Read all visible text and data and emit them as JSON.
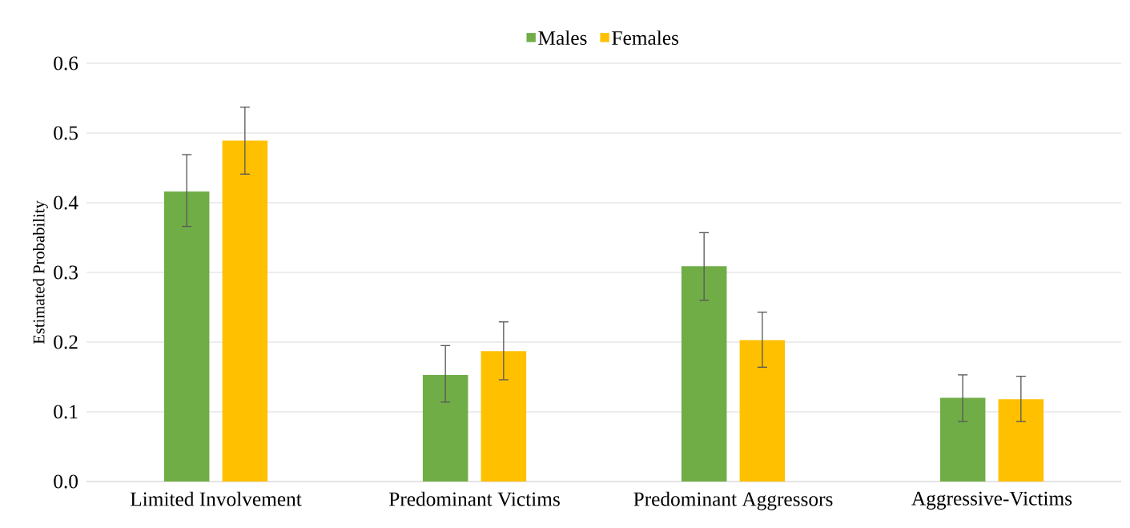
{
  "chart_data": {
    "type": "bar",
    "categories": [
      "Limited Involvement",
      "Predominant Victims",
      "Predominant Aggressors",
      "Aggressive-Victims"
    ],
    "series": [
      {
        "name": "Males",
        "color": "#70ad47",
        "values": [
          0.416,
          0.153,
          0.309,
          0.12
        ],
        "errors": [
          [
            0.366,
            0.469
          ],
          [
            0.114,
            0.195
          ],
          [
            0.26,
            0.357
          ],
          [
            0.086,
            0.153
          ]
        ]
      },
      {
        "name": "Females",
        "color": "#ffc000",
        "values": [
          0.489,
          0.187,
          0.203,
          0.118
        ],
        "errors": [
          [
            0.441,
            0.537
          ],
          [
            0.146,
            0.229
          ],
          [
            0.164,
            0.243
          ],
          [
            0.086,
            0.151
          ]
        ]
      }
    ],
    "ylabel": "Estimated Probability",
    "ylim": [
      0,
      0.6
    ],
    "yticks": [
      {
        "value": 0,
        "label": "0.0"
      },
      0.1,
      0.2,
      0.3,
      0.4,
      0.5,
      0.6
    ],
    "grid": "y",
    "legend": "top"
  }
}
